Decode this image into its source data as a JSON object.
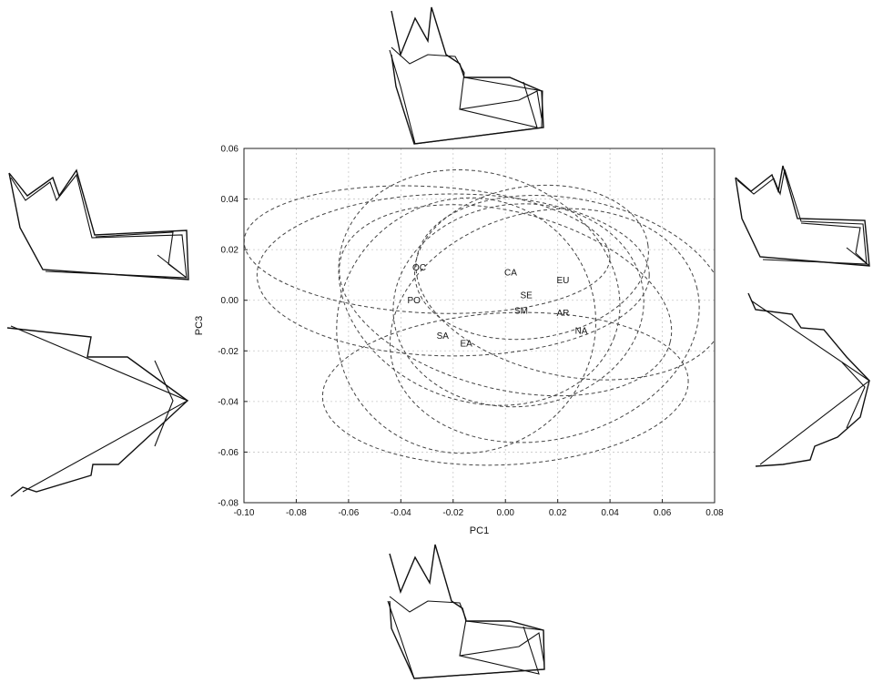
{
  "chart_data": {
    "type": "scatter",
    "title": "",
    "xlabel": "PC1",
    "ylabel": "PC3",
    "xlim": [
      -0.1,
      0.08
    ],
    "ylim": [
      -0.08,
      0.06
    ],
    "xticks": [
      -0.1,
      -0.08,
      -0.06,
      -0.04,
      -0.02,
      0.0,
      0.02,
      0.04,
      0.06,
      0.08
    ],
    "xtick_labels": [
      "-0.10",
      "-0.08",
      "-0.06",
      "-0.04",
      "-0.02",
      "0.00",
      "0.02",
      "0.04",
      "0.06",
      "0.08"
    ],
    "yticks": [
      0.06,
      0.04,
      0.02,
      0.0,
      -0.02,
      -0.04,
      -0.06,
      -0.08
    ],
    "ytick_labels": [
      "0.06",
      "0.04",
      "0.02",
      "0.00",
      "-0.02",
      "-0.04",
      "-0.06",
      "-0.08"
    ],
    "grid": true,
    "points": [
      {
        "label": "OC",
        "x": -0.033,
        "y": 0.013
      },
      {
        "label": "PO",
        "x": -0.035,
        "y": 0.0
      },
      {
        "label": "SA",
        "x": -0.024,
        "y": -0.014
      },
      {
        "label": "EA",
        "x": -0.015,
        "y": -0.017
      },
      {
        "label": "CA",
        "x": 0.002,
        "y": 0.011
      },
      {
        "label": "SE",
        "x": 0.008,
        "y": 0.002
      },
      {
        "label": "SM",
        "x": 0.006,
        "y": -0.004
      },
      {
        "label": "EU",
        "x": 0.022,
        "y": 0.008
      },
      {
        "label": "AR",
        "x": 0.022,
        "y": -0.005
      },
      {
        "label": "NA",
        "x": 0.029,
        "y": -0.012
      }
    ],
    "confidence_ellipses": [
      {
        "cx": -0.01,
        "cy": 0.005,
        "rx": 0.055,
        "ry": 0.045,
        "rot": -0.35
      },
      {
        "cx": 0.0,
        "cy": 0.0,
        "rx": 0.065,
        "ry": 0.035,
        "rot": -0.25
      },
      {
        "cx": -0.02,
        "cy": 0.01,
        "rx": 0.075,
        "ry": 0.032,
        "rot": 0.0
      },
      {
        "cx": 0.005,
        "cy": -0.002,
        "rx": 0.048,
        "ry": 0.04,
        "rot": 0.1
      },
      {
        "cx": 0.015,
        "cy": -0.01,
        "rx": 0.06,
        "ry": 0.045,
        "rot": 0.25
      },
      {
        "cx": -0.015,
        "cy": -0.01,
        "rx": 0.05,
        "ry": 0.05,
        "rot": 0.55
      },
      {
        "cx": 0.025,
        "cy": 0.005,
        "rx": 0.06,
        "ry": 0.035,
        "rot": -0.2
      },
      {
        "cx": -0.03,
        "cy": 0.02,
        "rx": 0.07,
        "ry": 0.025,
        "rot": -0.05
      },
      {
        "cx": 0.01,
        "cy": 0.015,
        "rx": 0.045,
        "ry": 0.03,
        "rot": 0.15
      },
      {
        "cx": 0.0,
        "cy": -0.035,
        "rx": 0.07,
        "ry": 0.03,
        "rot": 0.05
      }
    ],
    "shape_glyph_positions": [
      "top",
      "left-upper",
      "left-lower",
      "right-upper",
      "right-lower",
      "bottom"
    ]
  }
}
